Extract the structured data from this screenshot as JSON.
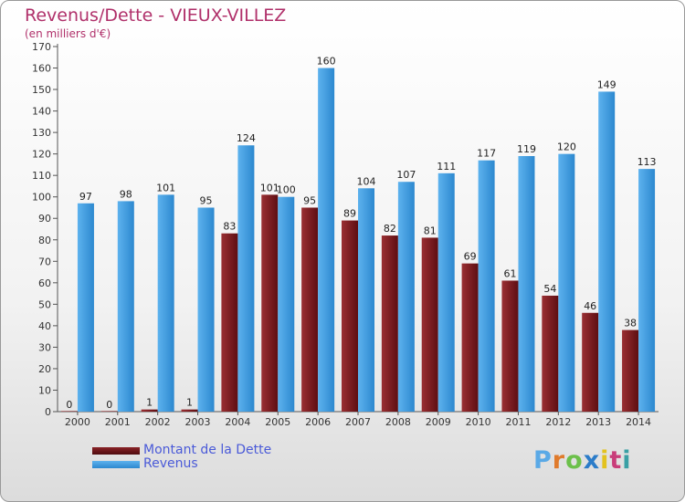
{
  "title": "Revenus/Dette - VIEUX-VILLEZ",
  "subtitle": "(en milliers d'€)",
  "logo_text": "Proxiti",
  "colors": {
    "dette": "#7a1a1f",
    "revenus": "#3f9de0",
    "title": "#b0306a",
    "legend_text": "#4a5ad8"
  },
  "chart_data": {
    "type": "bar",
    "categories": [
      "2000",
      "2001",
      "2002",
      "2003",
      "2004",
      "2005",
      "2006",
      "2007",
      "2008",
      "2009",
      "2010",
      "2011",
      "2012",
      "2013",
      "2014"
    ],
    "series": [
      {
        "name": "Montant de la Dette",
        "values": [
          0,
          0,
          1,
          1,
          83,
          101,
          95,
          89,
          82,
          81,
          69,
          61,
          54,
          46,
          38
        ]
      },
      {
        "name": "Revenus",
        "values": [
          97,
          98,
          101,
          95,
          124,
          100,
          160,
          104,
          107,
          111,
          117,
          119,
          120,
          149,
          113
        ]
      }
    ],
    "ylim": [
      0,
      170
    ],
    "yticks": [
      0,
      10,
      20,
      30,
      40,
      50,
      60,
      70,
      80,
      90,
      100,
      110,
      120,
      130,
      140,
      150,
      160,
      170
    ],
    "grid": false,
    "legend_position": "bottom-left"
  }
}
